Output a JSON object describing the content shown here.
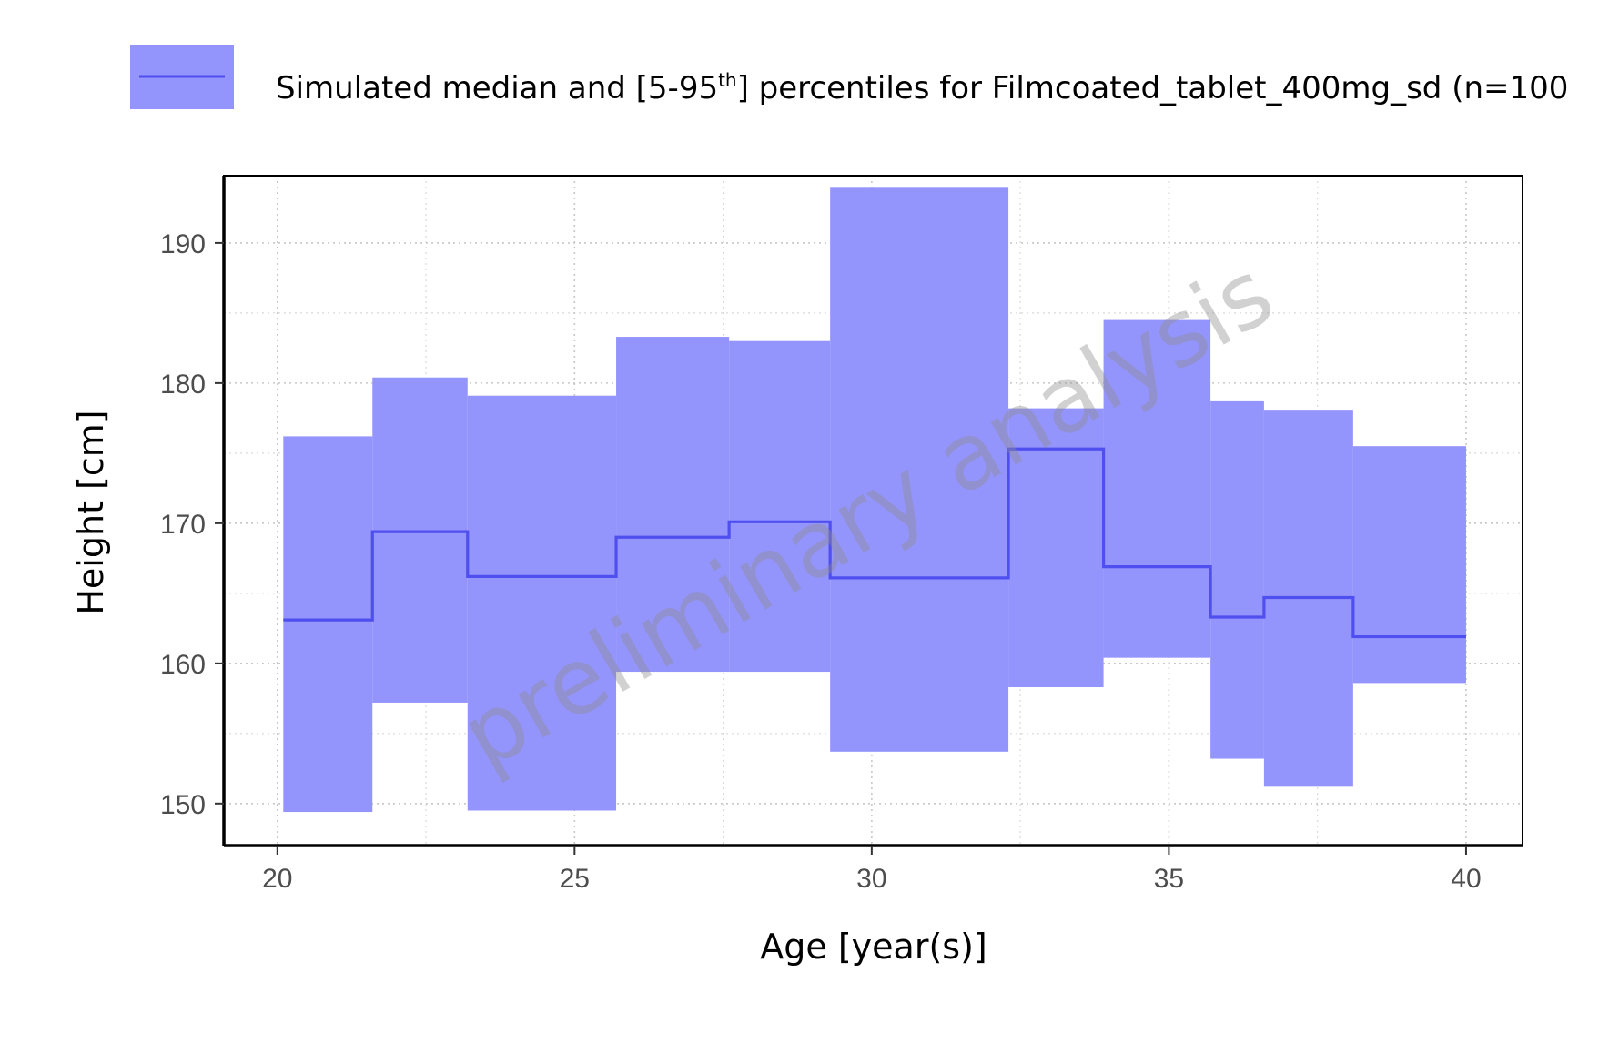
{
  "chart_data": {
    "type": "area",
    "xlabel": "Age [year(s)]",
    "ylabel": "Height [cm]",
    "xlim": [
      19.1,
      40.95
    ],
    "ylim": [
      147,
      194.8
    ],
    "xticks": [
      20,
      25,
      30,
      35,
      40
    ],
    "yticks": [
      150,
      160,
      170,
      180,
      190
    ],
    "grid": true,
    "legend_position": "top",
    "colors": {
      "band": "#9494fd",
      "median_line": "#4f4ff0"
    },
    "series": [
      {
        "name": "Simulated median and [5-95th] percentiles for Filmcoated_tablet_400mg_sd (n=100",
        "bins": [
          {
            "x_start": 20.1,
            "x_end": 21.6,
            "median": 163.1,
            "p5": 149.4,
            "p95": 176.2
          },
          {
            "x_start": 21.6,
            "x_end": 23.2,
            "median": 169.4,
            "p5": 157.2,
            "p95": 180.4
          },
          {
            "x_start": 23.2,
            "x_end": 25.7,
            "median": 166.2,
            "p5": 149.5,
            "p95": 179.1
          },
          {
            "x_start": 25.7,
            "x_end": 27.6,
            "median": 169.0,
            "p5": 159.4,
            "p95": 183.3
          },
          {
            "x_start": 27.6,
            "x_end": 29.3,
            "median": 170.1,
            "p5": 159.4,
            "p95": 183.0
          },
          {
            "x_start": 29.3,
            "x_end": 32.3,
            "median": 166.1,
            "p5": 153.7,
            "p95": 194.0
          },
          {
            "x_start": 32.3,
            "x_end": 33.9,
            "median": 175.3,
            "p5": 158.3,
            "p95": 178.2
          },
          {
            "x_start": 33.9,
            "x_end": 35.7,
            "median": 166.9,
            "p5": 160.4,
            "p95": 184.5
          },
          {
            "x_start": 35.7,
            "x_end": 36.6,
            "median": 163.3,
            "p5": 153.2,
            "p95": 178.7
          },
          {
            "x_start": 36.6,
            "x_end": 38.1,
            "median": 164.7,
            "p5": 151.2,
            "p95": 178.1
          },
          {
            "x_start": 38.1,
            "x_end": 40.0,
            "median": 161.9,
            "p5": 158.6,
            "p95": 175.5
          }
        ]
      }
    ]
  },
  "legend": {
    "label_prefix": "Simulated median and [5-95",
    "label_sup": "th",
    "label_suffix": "] percentiles for Filmcoated_tablet_400mg_sd (n=100"
  },
  "watermark": {
    "text": "preliminary analysis"
  }
}
